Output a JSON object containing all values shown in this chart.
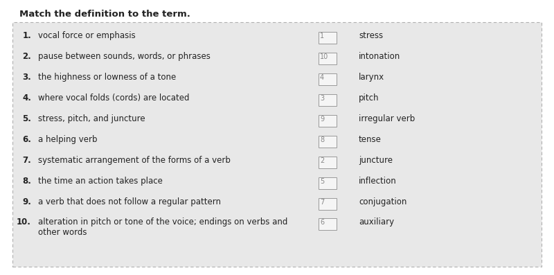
{
  "title": "Match the definition to the term.",
  "background_color": "#e8e8e8",
  "outer_bg": "#ffffff",
  "border_color": "#b0b0b0",
  "definitions": [
    {
      "num": "1.",
      "text": "vocal force or emphasis"
    },
    {
      "num": "2.",
      "text": "pause between sounds, words, or phrases"
    },
    {
      "num": "3.",
      "text": "the highness or lowness of a tone"
    },
    {
      "num": "4.",
      "text": "where vocal folds (cords) are located"
    },
    {
      "num": "5.",
      "text": "stress, pitch, and juncture"
    },
    {
      "num": "6.",
      "text": "a helping verb"
    },
    {
      "num": "7.",
      "text": "systematic arrangement of the forms of a verb"
    },
    {
      "num": "8.",
      "text": "the time an action takes place"
    },
    {
      "num": "9.",
      "text": "a verb that does not follow a regular pattern"
    },
    {
      "num": "10.",
      "text": "alteration in pitch or tone of the voice; endings on verbs and\nother words"
    }
  ],
  "terms": [
    {
      "answer": "1",
      "label": "stress"
    },
    {
      "answer": "10",
      "label": "intonation"
    },
    {
      "answer": "4",
      "label": "larynx"
    },
    {
      "answer": "3",
      "label": "pitch"
    },
    {
      "answer": "9",
      "label": "irregular verb"
    },
    {
      "answer": "8",
      "label": "tense"
    },
    {
      "answer": "2",
      "label": "juncture"
    },
    {
      "answer": "5",
      "label": "inflection"
    },
    {
      "answer": "7",
      "label": "conjugation"
    },
    {
      "answer": "6",
      "label": "auxiliary"
    }
  ],
  "title_fontsize": 9.5,
  "item_fontsize": 8.5,
  "answer_fontsize": 7,
  "box_color": "#f5f5f5",
  "box_border": "#999999",
  "text_color": "#222222",
  "num_color": "#222222",
  "answer_num_color": "#888888"
}
